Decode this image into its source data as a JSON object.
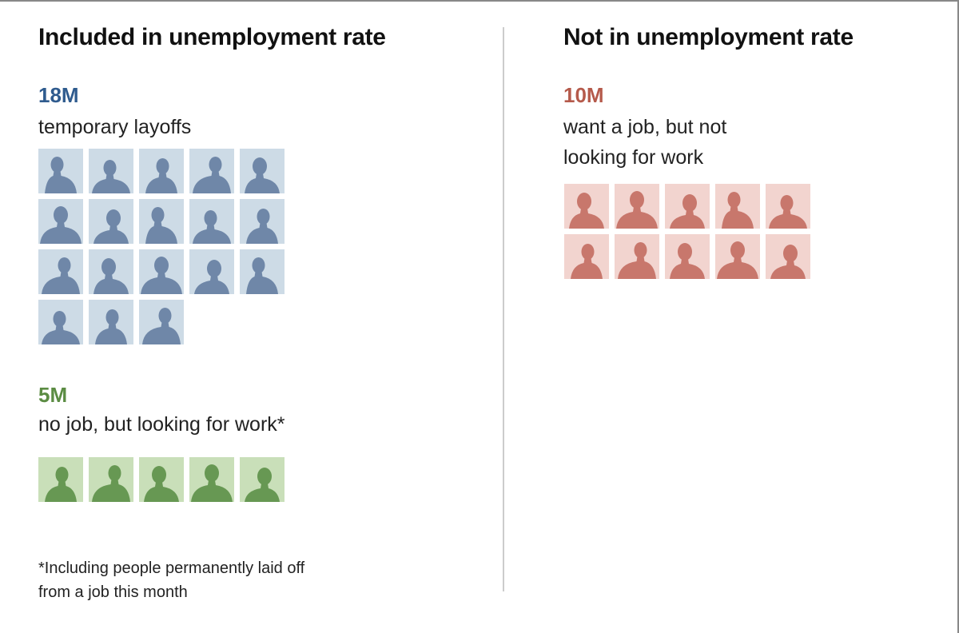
{
  "left": {
    "title": "Included in unemployment rate",
    "groups": [
      {
        "value": "18M",
        "label": "temporary layoffs",
        "count": 18,
        "color": "#2f5b8e",
        "tile_bg": "#cddbe6",
        "tile_fg": "#6f87a8"
      },
      {
        "value": "5M",
        "label": "no job, but looking for work*",
        "count": 5,
        "color": "#5b8c43",
        "tile_bg": "#c9dfb9",
        "tile_fg": "#679853"
      }
    ],
    "footnote": [
      "*Including people permanently laid off",
      "from a job this month"
    ]
  },
  "right": {
    "title": "Not in unemployment rate",
    "groups": [
      {
        "value": "10M",
        "label_lines": [
          "want a job, but not",
          "looking for work"
        ],
        "count": 10,
        "color": "#b55a4b",
        "tile_bg": "#f2d4cf",
        "tile_fg": "#c8776c"
      }
    ]
  },
  "chart_data": {
    "type": "pictograph",
    "unit": "1 icon = 1M people",
    "categories": [
      "temporary layoffs",
      "no job, but looking for work*",
      "want a job, but not looking for work"
    ],
    "values": [
      18,
      5,
      10
    ],
    "groups": [
      "Included in unemployment rate",
      "Included in unemployment rate",
      "Not in unemployment rate"
    ]
  }
}
